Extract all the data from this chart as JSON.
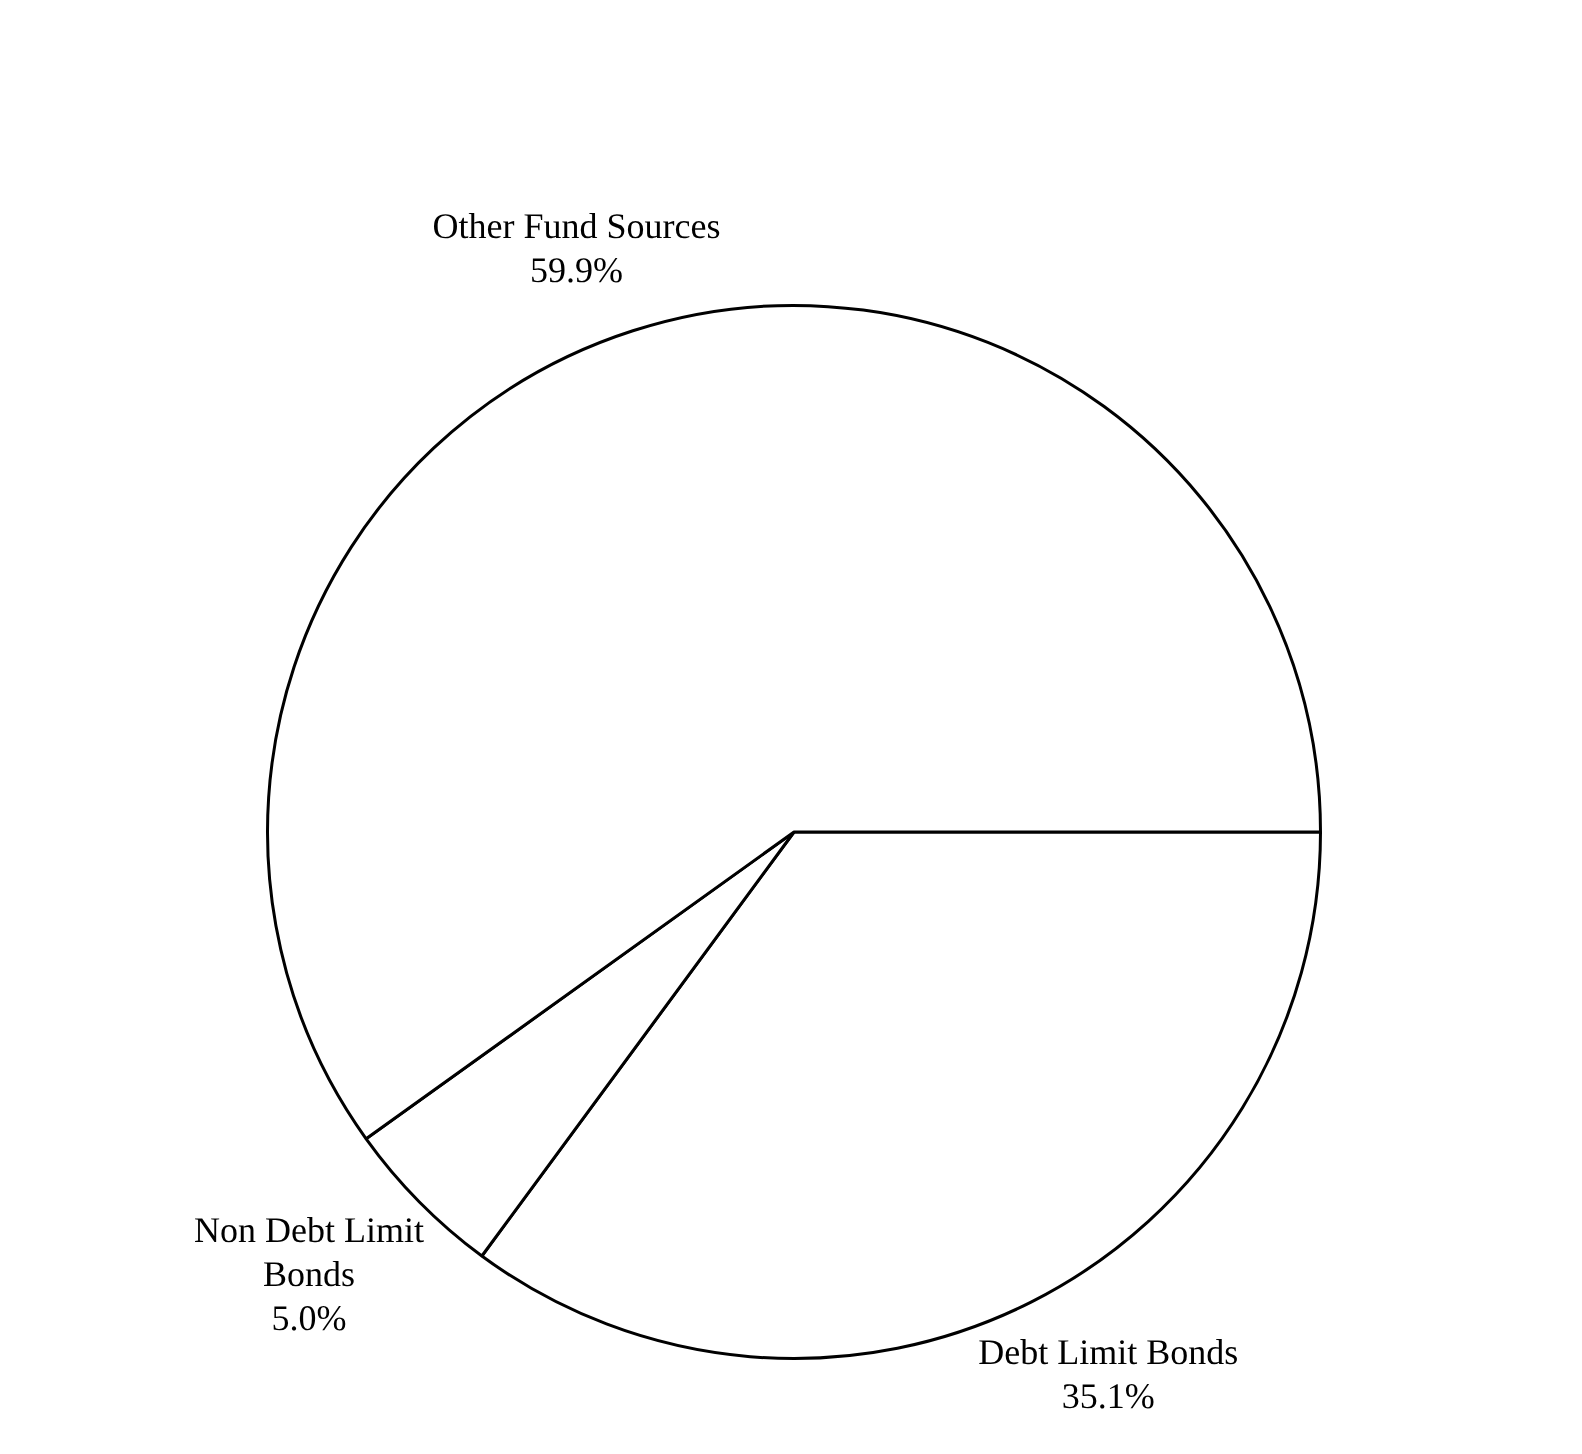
{
  "chart_data": {
    "type": "pie",
    "categories": [
      "Debt Limit Bonds",
      "Non Debt Limit Bonds",
      "Other Fund Sources"
    ],
    "values": [
      35.1,
      5.0,
      59.9
    ],
    "colors": [
      "#ffffff",
      "#ffffff",
      "#ffffff"
    ],
    "value_labels": [
      "35.1%",
      "5.0%",
      "59.9%"
    ],
    "legend": false
  }
}
